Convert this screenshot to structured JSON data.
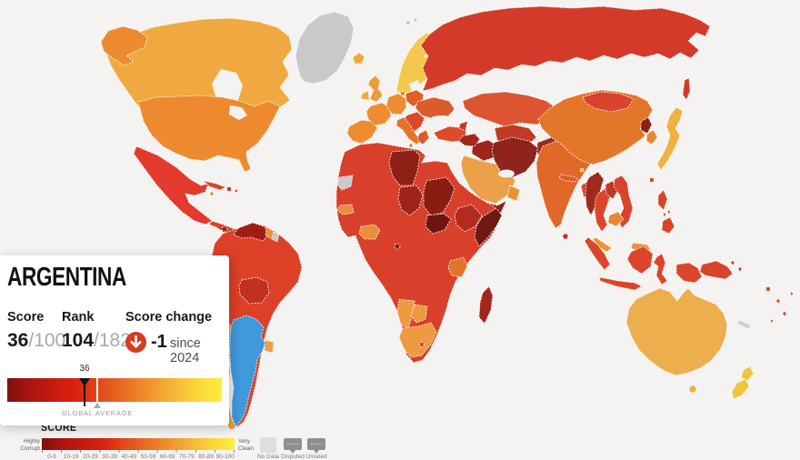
{
  "tooltip": {
    "country": "ARGENTINA",
    "score_label": "Score",
    "score_value": "36",
    "score_max": "/100",
    "rank_label": "Rank",
    "rank_value": "104",
    "rank_max": "/182",
    "change_label": "Score change",
    "change_value": "-1",
    "change_note": "since 2024",
    "change_direction": "down",
    "marker_value": "36",
    "marker_pos_pct": 36,
    "global_average_label": "GLOBAL AVERAGE",
    "global_average_pos_pct": 42
  },
  "legend": {
    "title": "SCORE",
    "left_label": "Highly Corrupt",
    "right_label": "Very Clean",
    "bins": [
      "0-9",
      "10-19",
      "20-29",
      "30-39",
      "40-49",
      "50-59",
      "60-69",
      "70-79",
      "80-89",
      "90-100"
    ],
    "no_data_label": "No Data",
    "chip1_label": "Disputed",
    "chip2_label": "Unrated"
  },
  "colors": {
    "ocean": "#f4f3f1",
    "selected_country": "#3f99db",
    "no_data": "#c9c9cb",
    "change_badge": "#d93a23",
    "scale_dark_red": "#7d120c",
    "scale_red": "#dc2412",
    "scale_orange": "#e96b22",
    "scale_yellow": "#ffec3e"
  },
  "map": {
    "regions": {
      "greenland": "#c9c9cb",
      "svalbard": "#c9c9cb",
      "iceland": "#efa93f",
      "canada": "#f0a940",
      "alaska": "#ed8a2f",
      "usa": "#ed8a2f",
      "mexico": "#e23a2c",
      "central-america": "#d8432b",
      "nicaragua": "#9e241a",
      "cuba": "#d8432b",
      "jamaica": "#e4872e",
      "hispaniola": "#c03425",
      "south-america-base": "#dc4128",
      "venezuela": "#9f1d15",
      "guyana": "#e79434",
      "suriname": "#c9c9cb",
      "bolivia": "#c23022",
      "uruguay": "#eda04a",
      "argentina": "#3f99db",
      "chile": "#ed9a41",
      "scandinavia": "#f2c94c",
      "denmark": "#e4872e",
      "uk": "#ee9a3c",
      "ireland": "#efa93f",
      "iberia": "#ee8c30",
      "france": "#ee8c30",
      "germany": "#ee8c30",
      "poland-baltics": "#e06023",
      "ukraine": "#dd5a2a",
      "balkans": "#da4a2a",
      "italy": "#e4742a",
      "sicily": "#e4742a",
      "greece": "#dc5a2c",
      "turkey": "#dc4a2a",
      "russia": "#d43a29",
      "sakhalin": "#d43a29",
      "kazakhstan": "#dc5530",
      "uzbek-turkmen": "#c23a26",
      "caucasus": "#c23a26",
      "iran": "#8e241c",
      "iraq": "#9e241c",
      "levant": "#a3261c",
      "saudi": "#eda04a",
      "yemen": "#8e1e16",
      "oman": "#e79434",
      "afghanistan": "#9e2a1e",
      "pakistan": "#d8432b",
      "africa-base": "#d8402c",
      "libya": "#8e1f14",
      "chad": "#9e241a",
      "sudan": "#8a1d12",
      "south-sudan": "#6e1510",
      "ethiopia": "#b52a1e",
      "somalia": "#701812",
      "eq-guinea": "#8e1f14",
      "madagascar": "#a3261c",
      "senegal": "#e98f3a",
      "ghana-ci": "#e98f3a",
      "tanzania": "#e4742c",
      "namibia": "#ed9a41",
      "botswana": "#ed9a41",
      "south-africa": "#ed9a41",
      "lesotho": "#d8432b",
      "w-sahara": "#c9c9cb",
      "india": "#e06828",
      "sri-lanka": "#c03425",
      "bangladesh": "#d8432b",
      "nepal": "#dc5a2c",
      "bhutan": "#f0c43f",
      "china": "#e4762a",
      "mongolia": "#d8432b",
      "taiwan": "#d8432b",
      "north-korea": "#8e1f14",
      "south-korea": "#e4872e",
      "japan": "#efb13f",
      "myanmar": "#9e2a1e",
      "thailand": "#dc452b",
      "laos": "#c03425",
      "vietnam": "#d8432b",
      "cambodia": "#e4872e",
      "malaysia": "#e79434",
      "borneo-my": "#e79434",
      "sumatra": "#dc452b",
      "java": "#dc452b",
      "borneo": "#dc452b",
      "sulawesi": "#dc452b",
      "papua-west": "#dc452b",
      "png": "#d8432b",
      "png-islands": "#d8432b",
      "philippines": "#d8432b",
      "australia": "#edae4d",
      "tasmania": "#edae4d",
      "nz-north": "#f0c43f",
      "nz-south": "#f0c43f",
      "new-caledonia": "#cfcfcf",
      "pacific-islands": "#d8432b",
      "hudson-bay": "#f4f3f1",
      "great-lakes": "#f4f3f1",
      "baltic-sea": "#f4f3f1",
      "black-sea": "#f4f3f1",
      "caspian-sea": "#f4f3f1",
      "persian-gulf": "#f4f3f1"
    }
  }
}
